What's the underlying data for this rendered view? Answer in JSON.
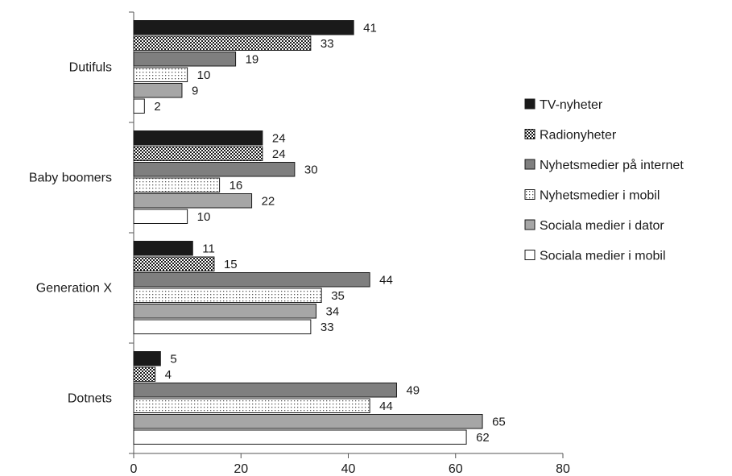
{
  "chart_data": {
    "type": "bar",
    "orientation": "horizontal",
    "categories": [
      "Dutifuls",
      "Baby boomers",
      "Generation X",
      "Dotnets"
    ],
    "series": [
      {
        "name": "TV-nyheter",
        "values": [
          41,
          24,
          11,
          5
        ],
        "color": "#1a1a1a",
        "pattern": "solid"
      },
      {
        "name": "Radionyheter",
        "values": [
          33,
          24,
          15,
          4
        ],
        "color": "#3a3a3a",
        "pattern": "checker"
      },
      {
        "name": "Nyhetsmedier på internet",
        "values": [
          19,
          30,
          44,
          49
        ],
        "color": "#7f7f7f",
        "pattern": "solid"
      },
      {
        "name": "Nyhetsmedier i mobil",
        "values": [
          10,
          16,
          35,
          44
        ],
        "color": "#ffffff",
        "pattern": "dots"
      },
      {
        "name": "Sociala medier i dator",
        "values": [
          9,
          22,
          34,
          65
        ],
        "color": "#a6a6a6",
        "pattern": "solid"
      },
      {
        "name": "Sociala medier i mobil",
        "values": [
          2,
          10,
          33,
          62
        ],
        "color": "#ffffff",
        "pattern": "none"
      }
    ],
    "xlim": [
      0,
      80
    ],
    "xticks": [
      0,
      20,
      40,
      60,
      80
    ],
    "legend_position": "right",
    "grid": false,
    "title": "",
    "xlabel": "",
    "ylabel": ""
  }
}
